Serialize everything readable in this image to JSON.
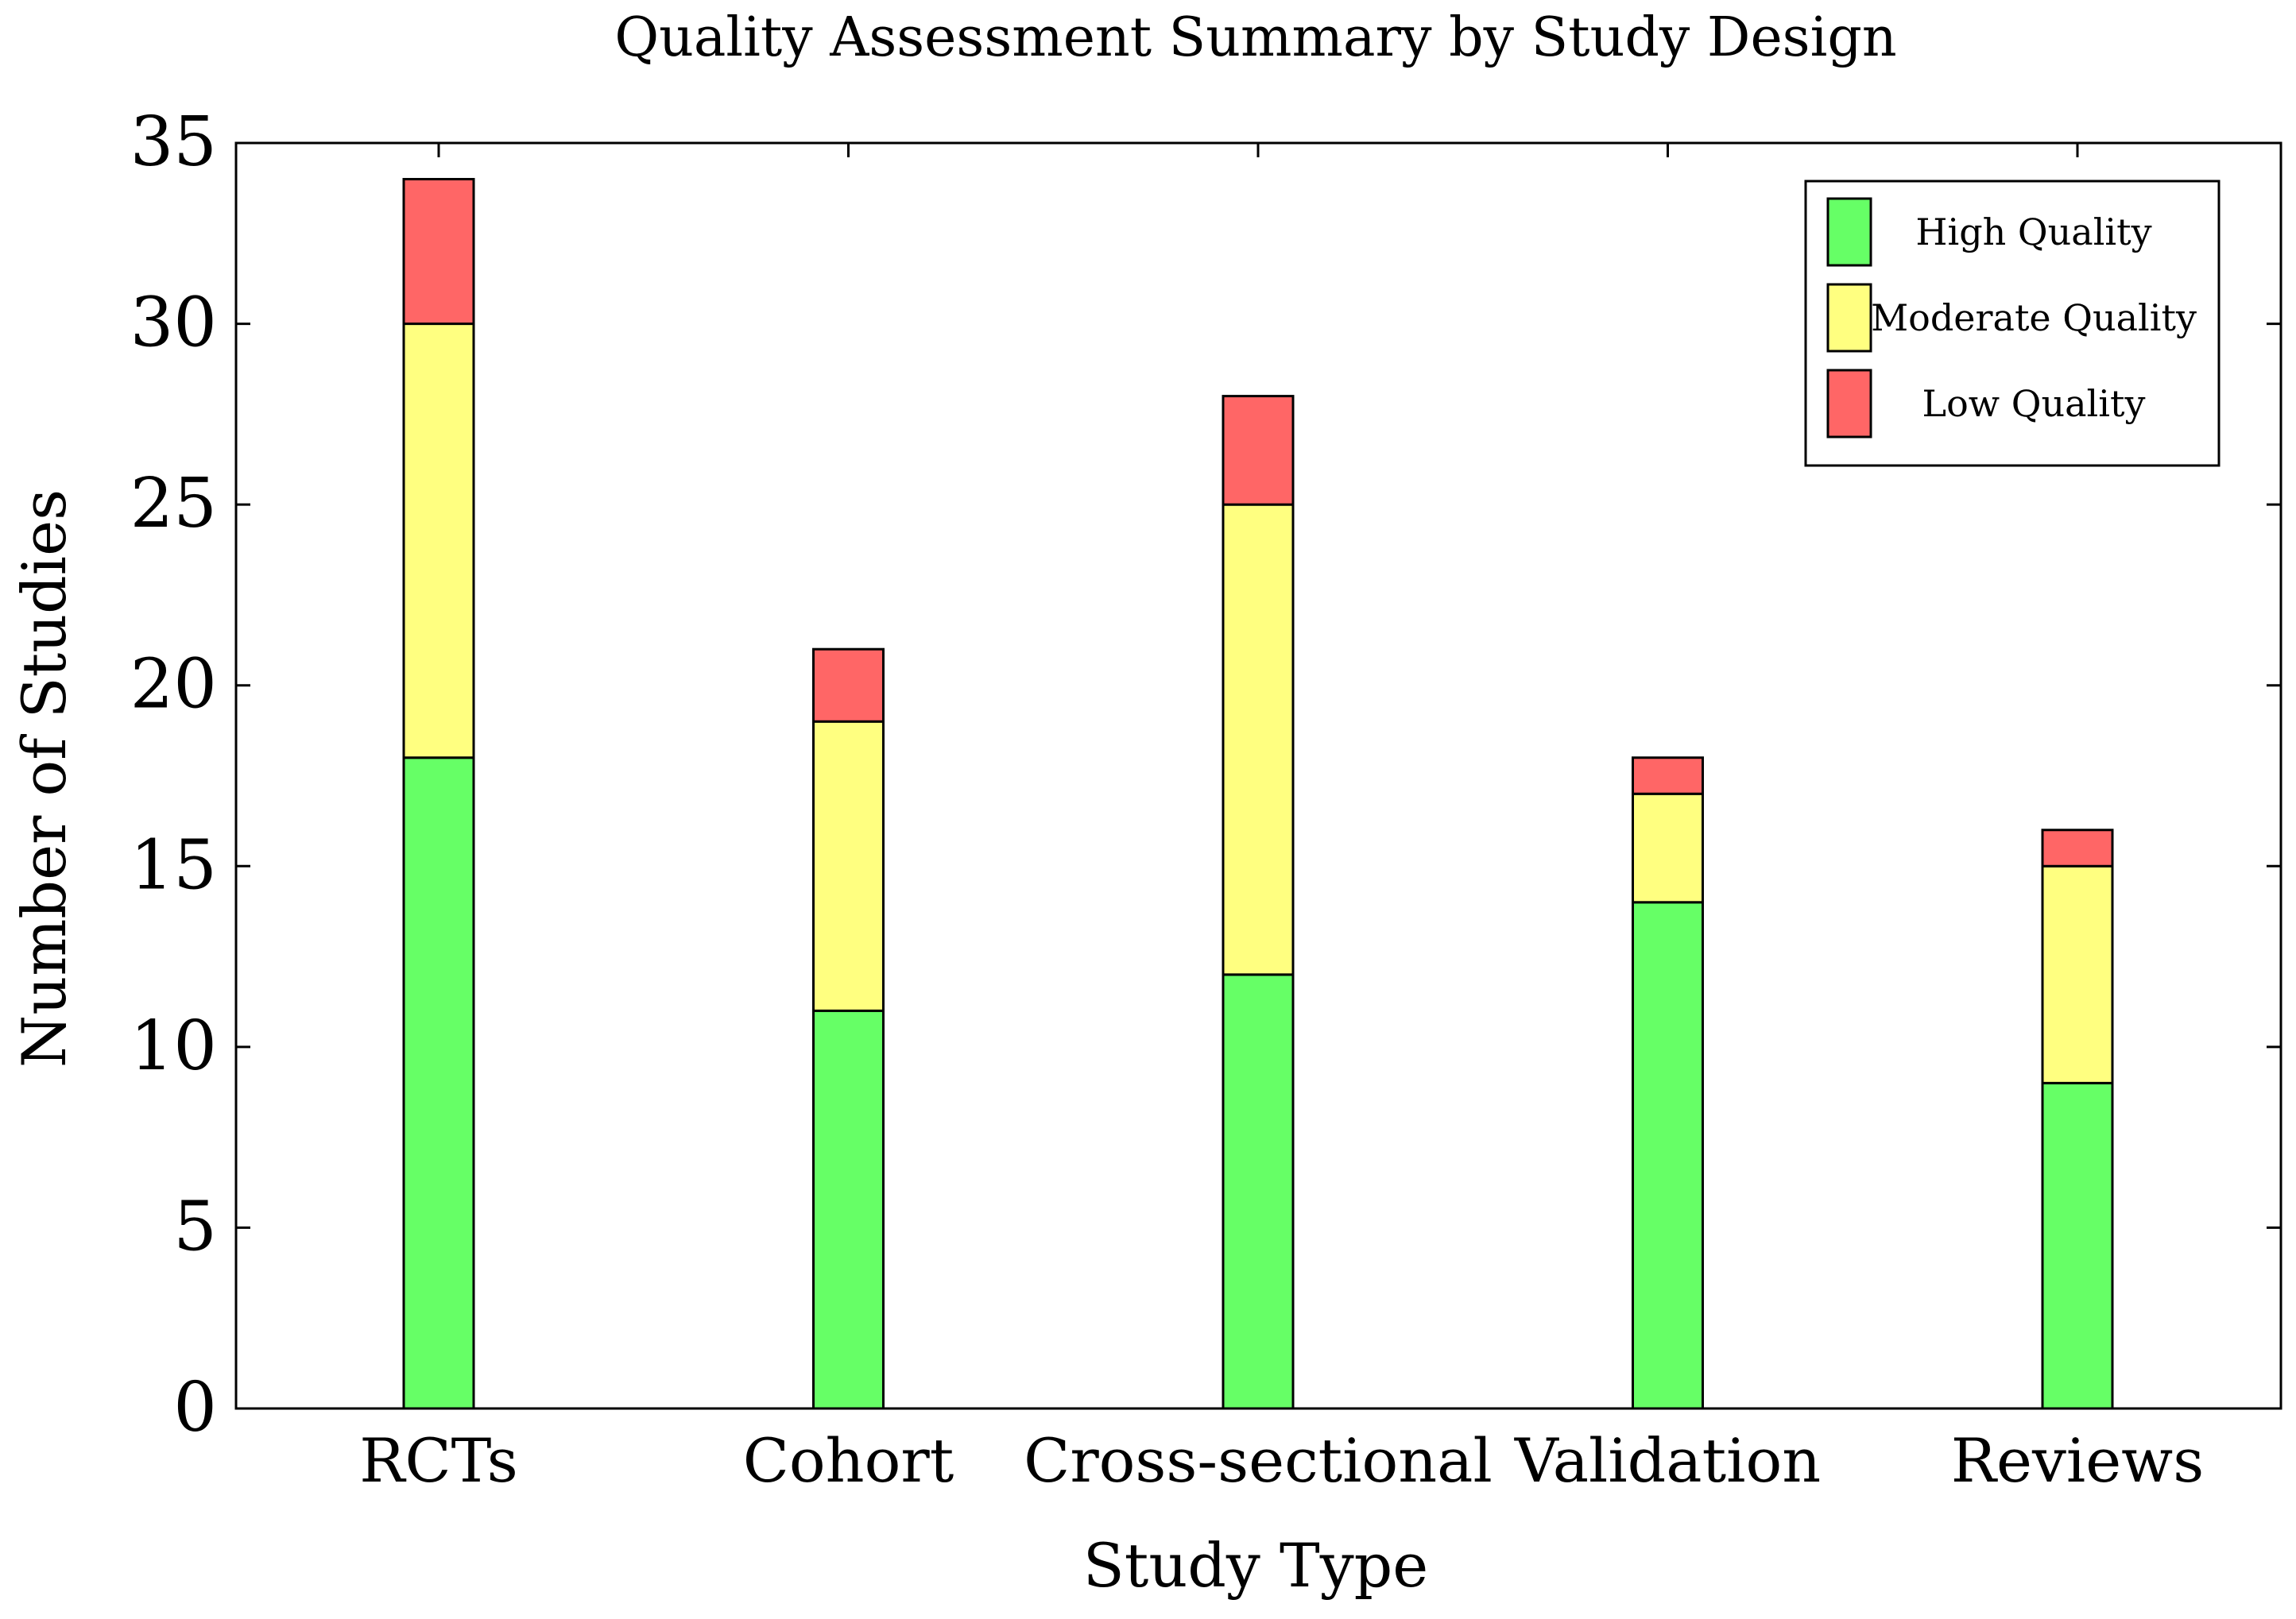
{
  "chart_data": {
    "type": "bar",
    "stacked": true,
    "title": "Quality Assessment Summary by Study Design",
    "xlabel": "Study Type",
    "ylabel": "Number of Studies",
    "ylim": [
      0,
      35
    ],
    "yticks": [
      0,
      5,
      10,
      15,
      20,
      25,
      30,
      35
    ],
    "grid": false,
    "legend_position": "top-right",
    "categories": [
      "RCTs",
      "Cohort",
      "Cross-sectional",
      "Validation",
      "Reviews"
    ],
    "series": [
      {
        "name": "High Quality",
        "color": "#66ff66",
        "values": [
          18,
          11,
          12,
          14,
          9
        ]
      },
      {
        "name": "Moderate Quality",
        "color": "#ffff80",
        "values": [
          12,
          8,
          13,
          3,
          6
        ]
      },
      {
        "name": "Low Quality",
        "color": "#ff6666",
        "values": [
          4,
          2,
          3,
          1,
          1
        ]
      }
    ]
  }
}
